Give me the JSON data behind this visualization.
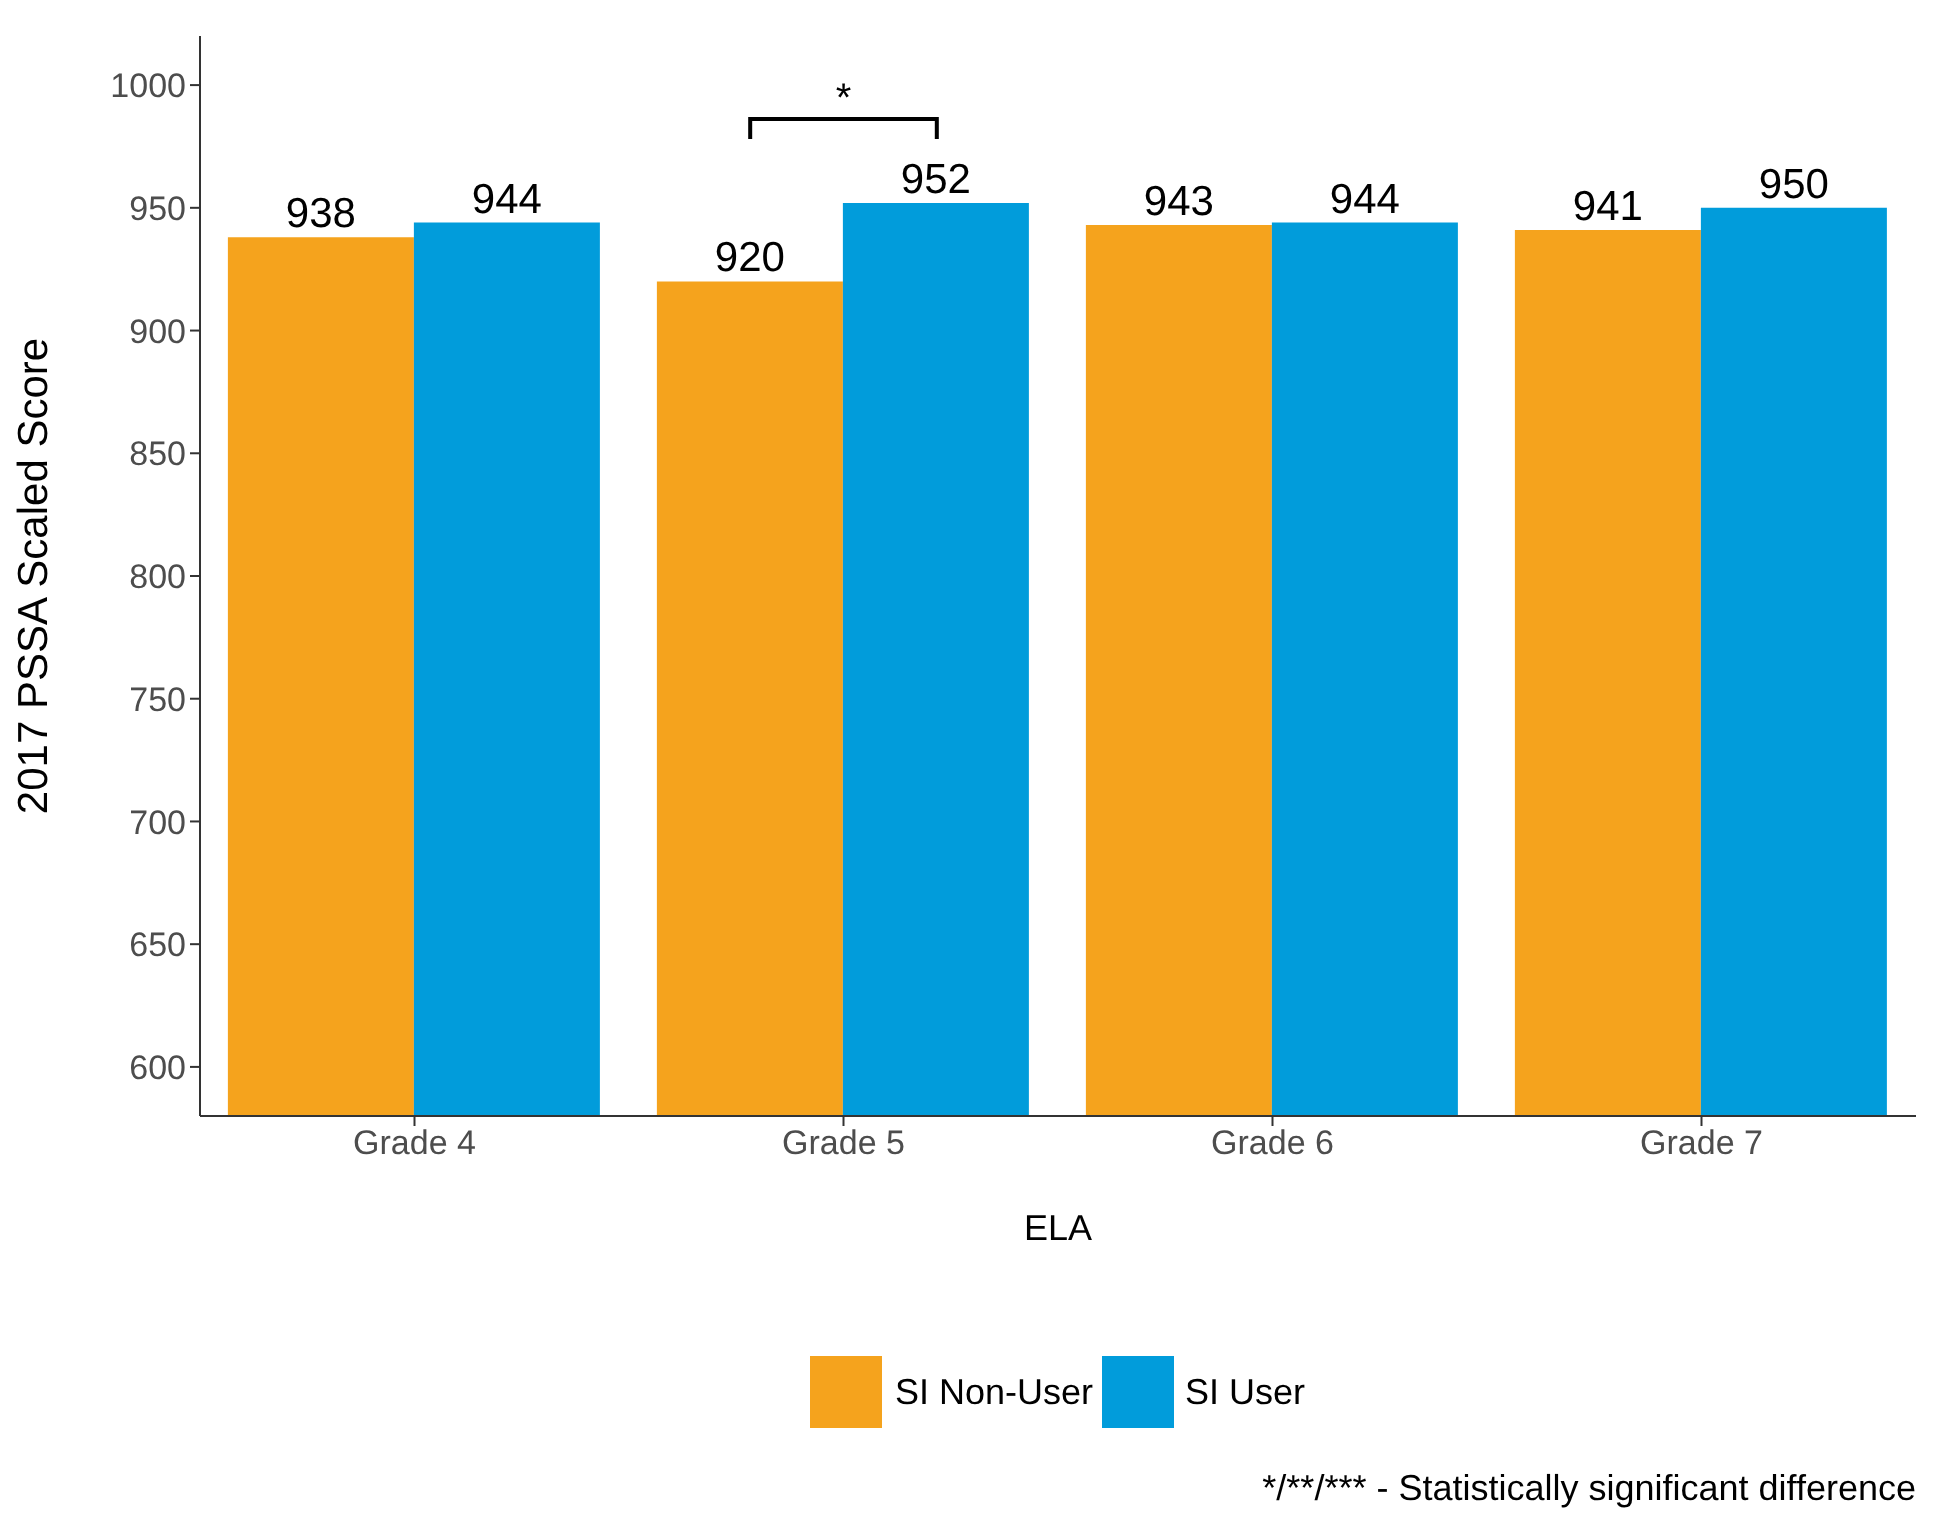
{
  "chart_data": {
    "type": "bar",
    "xlabel": "ELA",
    "ylabel": "2017 PSSA Scaled Score",
    "categories": [
      "Grade 4",
      "Grade 5",
      "Grade 6",
      "Grade 7"
    ],
    "series": [
      {
        "name": "SI Non-User",
        "color": "#f5a31d",
        "values": [
          938,
          920,
          943,
          941
        ]
      },
      {
        "name": "SI User",
        "color": "#019cdb",
        "values": [
          944,
          952,
          944,
          950
        ]
      }
    ],
    "ylim": [
      580,
      1020
    ],
    "yticks": [
      600,
      650,
      700,
      750,
      800,
      850,
      900,
      950,
      1000
    ],
    "data_labels": true,
    "grid": false,
    "legend": "bottom",
    "annotations": [
      "*",
      "*/**/*** - Statistically significant difference"
    ]
  }
}
